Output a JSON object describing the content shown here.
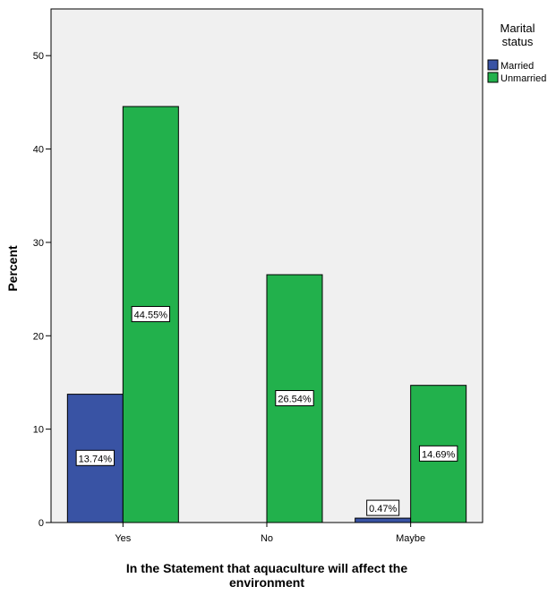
{
  "chart_data": {
    "type": "bar",
    "categories": [
      "Yes",
      "No",
      "Maybe"
    ],
    "series": [
      {
        "name": "Married",
        "values": [
          13.74,
          0,
          0.47
        ],
        "labels": [
          "13.74%",
          "",
          "0.47%"
        ],
        "color": "#3953a4"
      },
      {
        "name": "Unmarried",
        "values": [
          44.55,
          26.54,
          14.69
        ],
        "labels": [
          "44.55%",
          "26.54%",
          "14.69%"
        ],
        "color": "#22b14c"
      }
    ],
    "xlabel": [
      "In the Statement that aquaculture will affect the",
      "environment"
    ],
    "ylabel": "Percent",
    "ylim": [
      0,
      55
    ],
    "yticks": [
      0,
      10,
      20,
      30,
      40,
      50
    ],
    "legend": {
      "title": [
        "Marital",
        "status"
      ],
      "position": "right"
    },
    "plot_background": "#f0f0f0",
    "grid": false
  }
}
